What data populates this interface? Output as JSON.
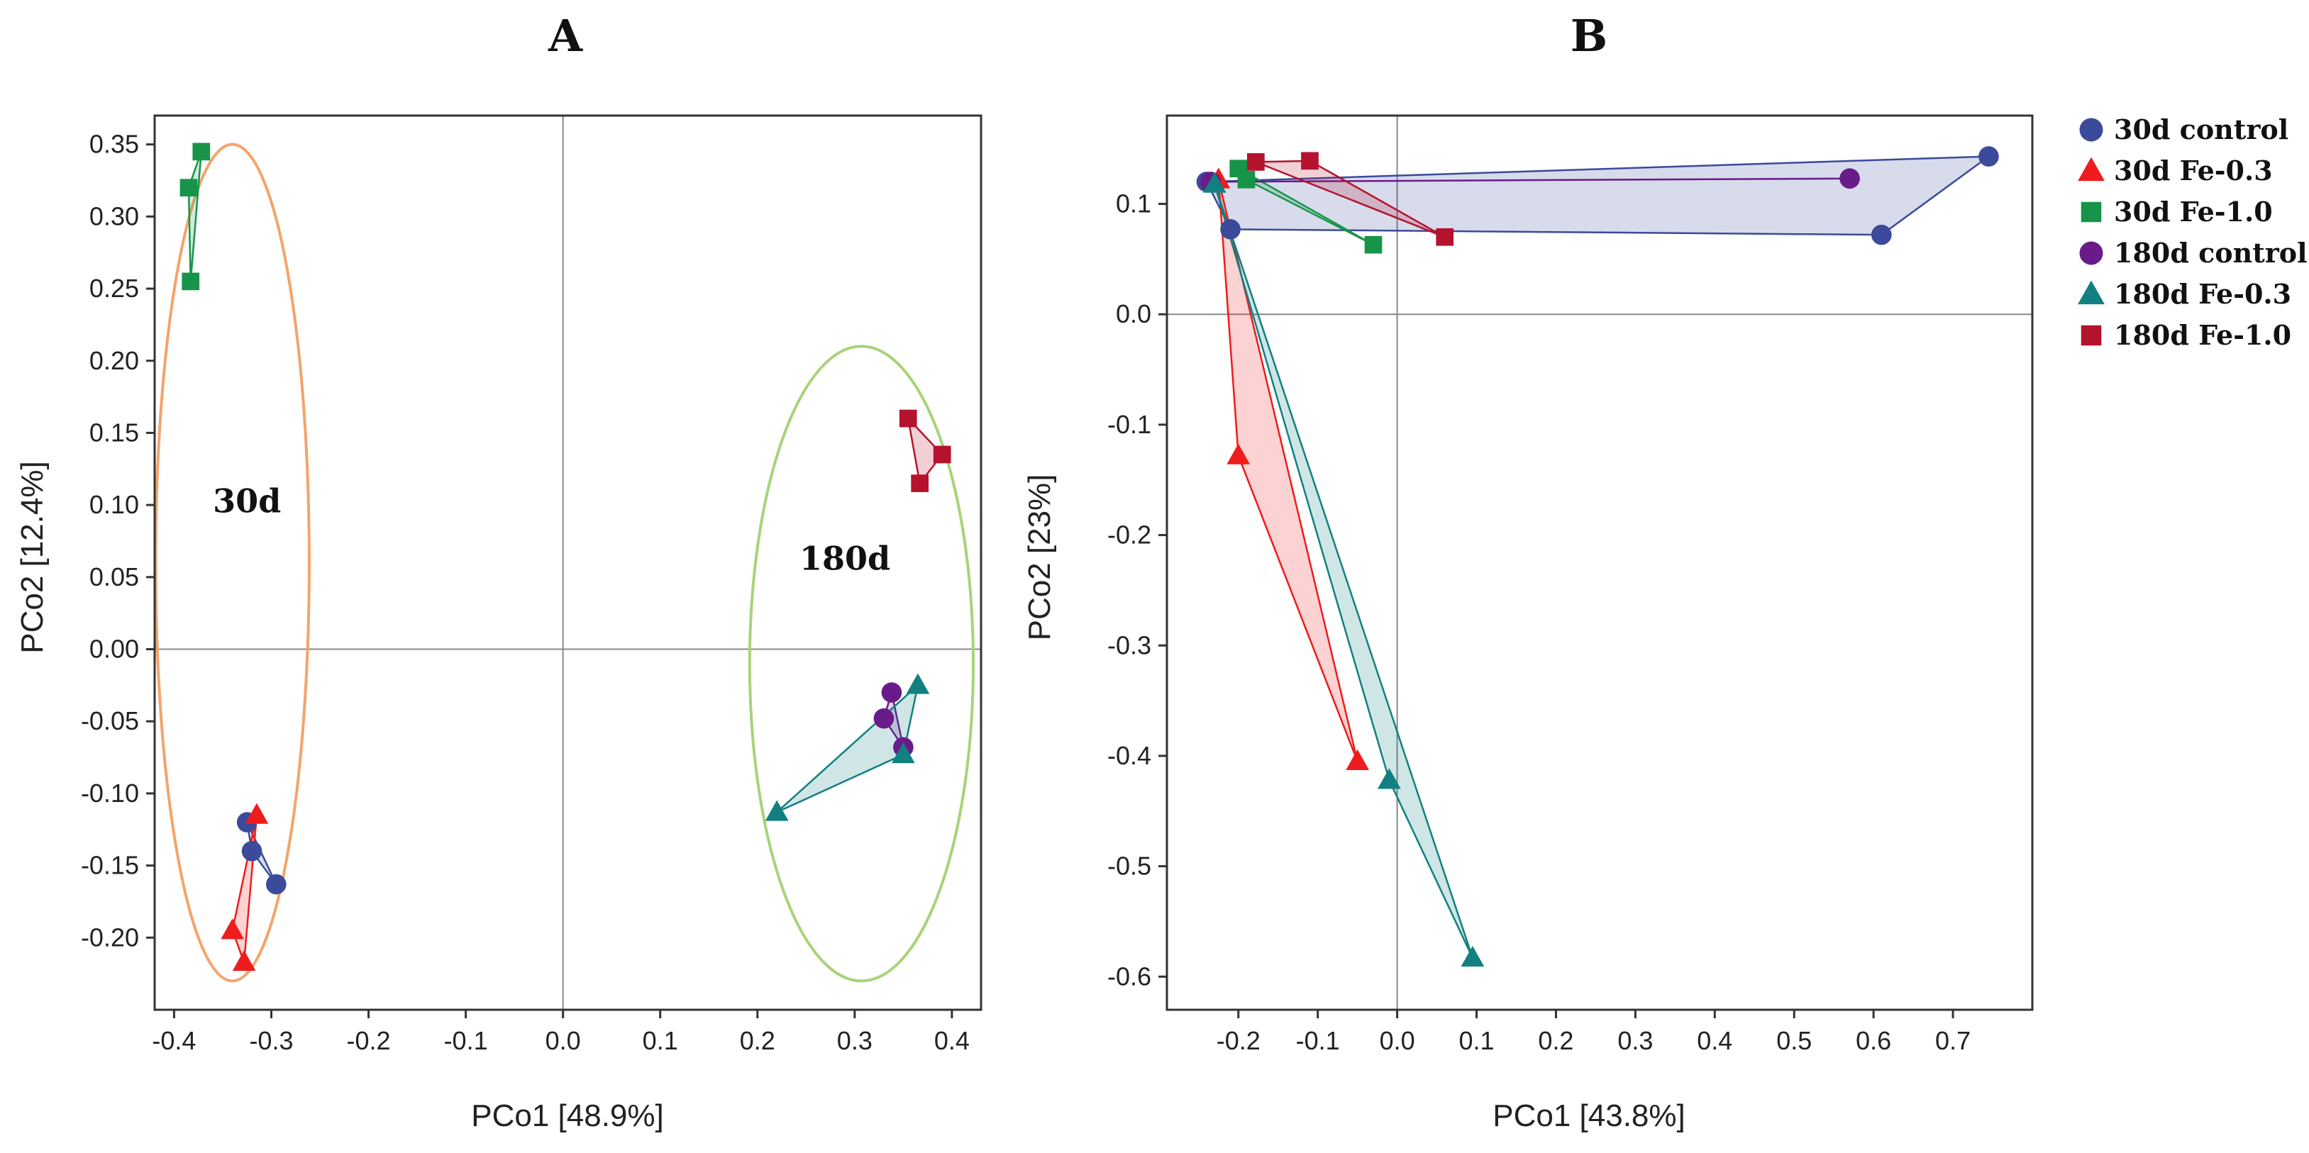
{
  "legend": {
    "entries": [
      {
        "label": "30d control",
        "shape": "circle",
        "color": "#3B4A9A"
      },
      {
        "label": "30d Fe-0.3",
        "shape": "triangle",
        "color": "#EE1C1C"
      },
      {
        "label": "30d Fe-1.0",
        "shape": "square",
        "color": "#17944A"
      },
      {
        "label": "180d control",
        "shape": "circle",
        "color": "#6A1B8A"
      },
      {
        "label": "180d Fe-0.3",
        "shape": "triangle",
        "color": "#128080"
      },
      {
        "label": "180d Fe-1.0",
        "shape": "square",
        "color": "#B5122E"
      }
    ]
  },
  "chart_data": [
    {
      "type": "scatter",
      "panel": "A",
      "xlabel": "PCo1 [48.9%]",
      "ylabel": "PCo2 [12.4%]",
      "xlim": [
        -0.42,
        0.43
      ],
      "ylim": [
        -0.25,
        0.37
      ],
      "xticks": [
        -0.4,
        -0.3,
        -0.2,
        -0.1,
        0.0,
        0.1,
        0.2,
        0.3,
        0.4
      ],
      "xtick_labels": [
        "-0.4",
        "-0.3",
        "-0.2",
        "-0.1",
        "0.0",
        "0.1",
        "0.2",
        "0.3",
        "0.4"
      ],
      "yticks": [
        -0.2,
        -0.15,
        -0.1,
        -0.05,
        0.0,
        0.05,
        0.1,
        0.15,
        0.2,
        0.25,
        0.3,
        0.35
      ],
      "ytick_labels": [
        "-0.20",
        "-0.15",
        "-0.10",
        "-0.05",
        "0.00",
        "0.05",
        "0.10",
        "0.15",
        "0.20",
        "0.25",
        "0.30",
        "0.35"
      ],
      "reference_lines": {
        "x": 0,
        "y": 0
      },
      "annotations": [
        {
          "text": "30d",
          "x": -0.325,
          "y": 0.095
        },
        {
          "text": "180d",
          "x": 0.29,
          "y": 0.055
        }
      ],
      "ellipses": [
        {
          "group": "30d",
          "cx": -0.34,
          "cy": 0.06,
          "rx": 0.079,
          "ry": 0.29,
          "color": "#F4A46A"
        },
        {
          "group": "180d",
          "cx": 0.307,
          "cy": -0.01,
          "rx": 0.115,
          "ry": 0.22,
          "color": "#A8D37A"
        }
      ],
      "series": [
        {
          "name": "30d control",
          "points": [
            [
              -0.325,
              -0.12
            ],
            [
              -0.32,
              -0.14
            ],
            [
              -0.295,
              -0.163
            ]
          ]
        },
        {
          "name": "30d Fe-0.3",
          "points": [
            [
              -0.315,
              -0.115
            ],
            [
              -0.34,
              -0.195
            ],
            [
              -0.328,
              -0.217
            ]
          ]
        },
        {
          "name": "30d Fe-1.0",
          "points": [
            [
              -0.372,
              0.345
            ],
            [
              -0.385,
              0.32
            ],
            [
              -0.383,
              0.255
            ]
          ]
        },
        {
          "name": "180d control",
          "points": [
            [
              0.338,
              -0.03
            ],
            [
              0.33,
              -0.048
            ],
            [
              0.35,
              -0.068
            ]
          ]
        },
        {
          "name": "180d Fe-0.3",
          "points": [
            [
              0.365,
              -0.025
            ],
            [
              0.35,
              -0.073
            ],
            [
              0.22,
              -0.113
            ]
          ]
        },
        {
          "name": "180d Fe-1.0",
          "points": [
            [
              0.355,
              0.16
            ],
            [
              0.39,
              0.135
            ],
            [
              0.367,
              0.115
            ]
          ]
        }
      ]
    },
    {
      "type": "scatter",
      "panel": "B",
      "xlabel": "PCo1 [43.8%]",
      "ylabel": "PCo2 [23%]",
      "xlim": [
        -0.29,
        0.8
      ],
      "ylim": [
        -0.63,
        0.18
      ],
      "xticks": [
        -0.2,
        -0.1,
        0.0,
        0.1,
        0.2,
        0.3,
        0.4,
        0.5,
        0.6,
        0.7
      ],
      "xtick_labels": [
        "-0.2",
        "-0.1",
        "0.0",
        "0.1",
        "0.2",
        "0.3",
        "0.4",
        "0.5",
        "0.6",
        "0.7"
      ],
      "yticks": [
        -0.6,
        -0.5,
        -0.4,
        -0.3,
        -0.2,
        -0.1,
        0.0,
        0.1
      ],
      "ytick_labels": [
        "-0.6",
        "-0.5",
        "-0.4",
        "-0.3",
        "-0.2",
        "-0.1",
        "0.0",
        "0.1"
      ],
      "reference_lines": {
        "x": 0,
        "y": 0
      },
      "series": [
        {
          "name": "30d control",
          "points": [
            [
              -0.24,
              0.12
            ],
            [
              -0.21,
              0.077
            ],
            [
              0.61,
              0.072
            ],
            [
              0.745,
              0.143
            ]
          ]
        },
        {
          "name": "30d Fe-0.3",
          "points": [
            [
              -0.225,
              0.122
            ],
            [
              -0.2,
              -0.128
            ],
            [
              -0.05,
              -0.405
            ]
          ]
        },
        {
          "name": "30d Fe-1.0",
          "points": [
            [
              -0.2,
              0.132
            ],
            [
              -0.19,
              0.122
            ],
            [
              -0.03,
              0.063
            ]
          ]
        },
        {
          "name": "180d control",
          "points": [
            [
              -0.235,
              0.12
            ],
            [
              0.57,
              0.123
            ]
          ]
        },
        {
          "name": "180d Fe-0.3",
          "points": [
            [
              -0.23,
              0.118
            ],
            [
              -0.01,
              -0.422
            ],
            [
              0.095,
              -0.583
            ]
          ]
        },
        {
          "name": "180d Fe-1.0",
          "points": [
            [
              -0.178,
              0.138
            ],
            [
              -0.11,
              0.139
            ],
            [
              0.06,
              0.07
            ]
          ]
        }
      ]
    }
  ]
}
